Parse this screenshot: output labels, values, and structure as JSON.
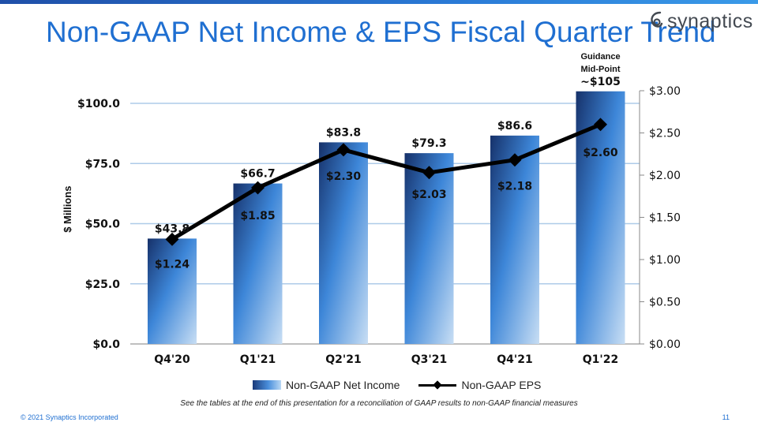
{
  "slide": {
    "title": "Non-GAAP Net Income & EPS Fiscal Quarter Trend",
    "logo_text": "synaptics",
    "footnote": "See the tables at the end of this presentation for a reconciliation of GAAP results to non-GAAP financial measures",
    "copyright": "© 2021 Synaptics Incorporated",
    "page_number": "11",
    "accent_color": "#1f6fd1"
  },
  "chart_data": {
    "type": "bar",
    "categories": [
      "Q4'20",
      "Q1'21",
      "Q2'21",
      "Q3'21",
      "Q4'21",
      "Q1'22"
    ],
    "ylabel": "$ Millions",
    "ylim": [
      0,
      112
    ],
    "y2lim": [
      0,
      3.0
    ],
    "yticks": [
      "$0.0",
      "$25.0",
      "$50.0",
      "$75.0",
      "$100.0"
    ],
    "y2ticks": [
      "$0.00",
      "$0.50",
      "$1.00",
      "$1.50",
      "$2.00",
      "$2.50",
      "$3.00"
    ],
    "series": [
      {
        "name": "Non-GAAP Net Income",
        "type": "bar",
        "values": [
          43.8,
          66.7,
          83.8,
          79.3,
          86.6,
          105
        ],
        "labels": [
          "$43.8",
          "$66.7",
          "$83.8",
          "$79.3",
          "$86.6",
          "~$105"
        ]
      },
      {
        "name": "Non-GAAP EPS",
        "type": "line",
        "axis": "right",
        "values": [
          1.24,
          1.85,
          2.3,
          2.03,
          2.18,
          2.6
        ],
        "labels": [
          "$1.24",
          "$1.85",
          "$2.30",
          "$2.03",
          "$2.18",
          "$2.60"
        ]
      }
    ],
    "annotation": [
      "Guidance",
      "Mid-Point"
    ],
    "grid": false,
    "legend": "bottom"
  }
}
